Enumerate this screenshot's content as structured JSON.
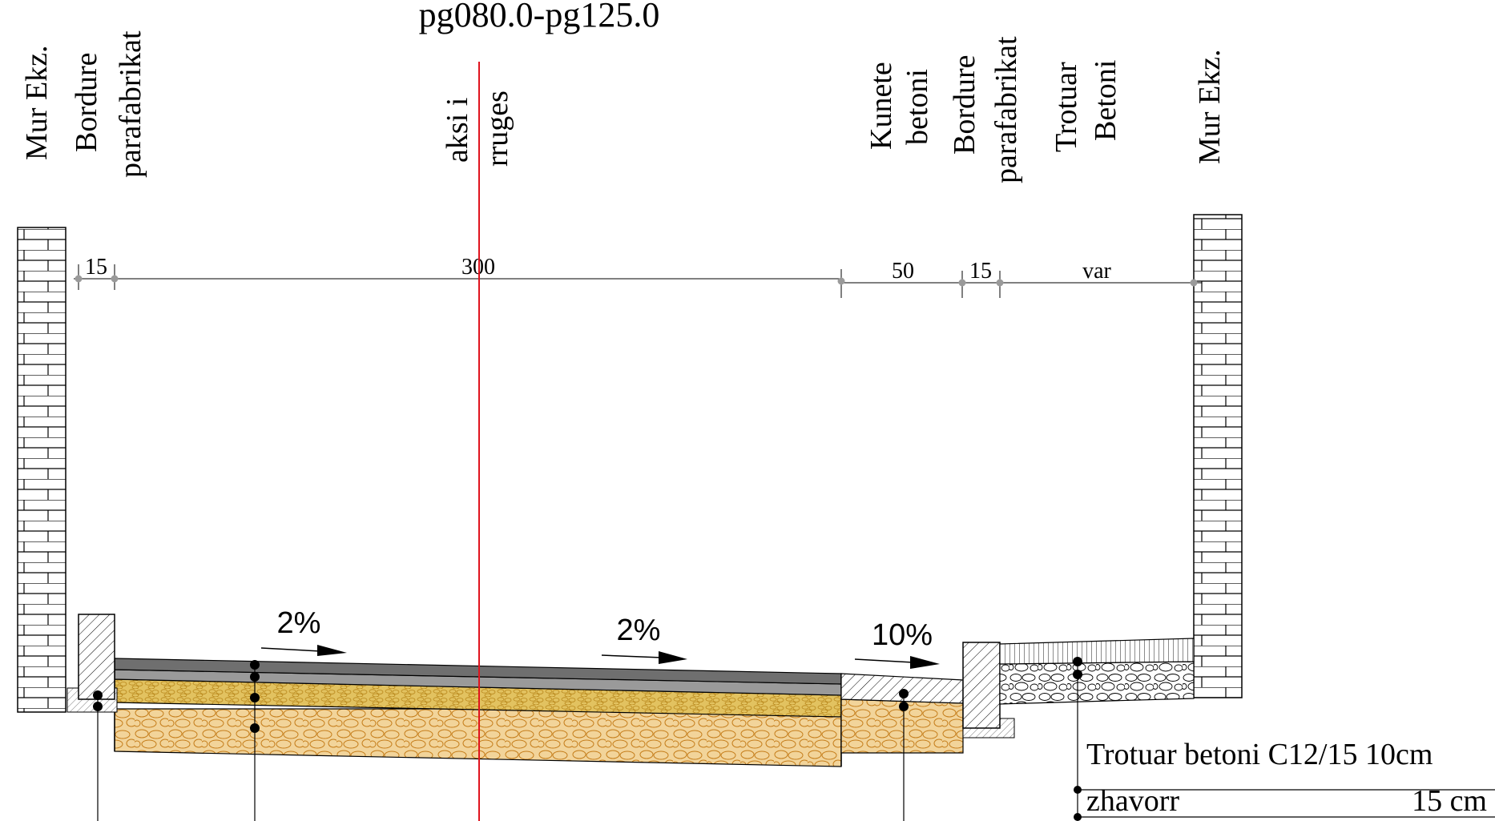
{
  "title": "pg080.0-pg125.0",
  "vertical_labels": {
    "mur_left": [
      "Mur Ekz."
    ],
    "bordure_left": [
      "Bordure",
      "parafabrikat"
    ],
    "axis": [
      "aksi i",
      "rruges"
    ],
    "kunete": [
      "Kunete",
      "betoni"
    ],
    "bordure_right": [
      "Bordure",
      "parafabrikat"
    ],
    "trotuar": [
      "Trotuar",
      "Betoni"
    ],
    "mur_right": [
      "Mur Ekz."
    ]
  },
  "dimensions": {
    "curb_left": "15",
    "road": "300",
    "gutter": "50",
    "curb_right": "15",
    "sidewalk": "var"
  },
  "slopes": {
    "left": "2%",
    "right": "2%",
    "gutter": "10%"
  },
  "legend": {
    "row1": "Trotuar betoni C12/15 10cm",
    "row2_label": "zhavorr",
    "row2_value": "15 cm"
  },
  "colors": {
    "axis_line": "#e0141e",
    "asphalt": "#7a7a7a",
    "gravel_fill": "#f2d49a",
    "gravel_stroke": "#c57d1a",
    "aggregate_fill": "#e2c260",
    "aggregate_stroke": "#b8861a",
    "dimension_dot": "#9a9a9a"
  }
}
